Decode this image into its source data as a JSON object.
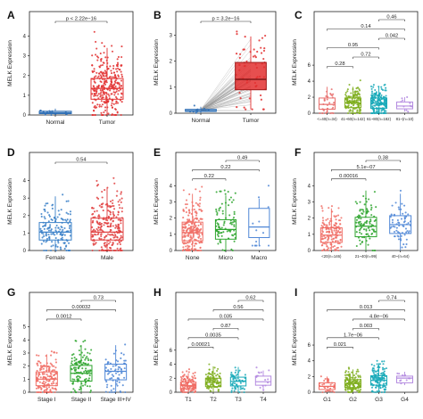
{
  "figure": {
    "panels": [
      {
        "letter": "A",
        "ylabel": "MELK Expression"
      },
      {
        "letter": "B",
        "ylabel": "MELK Expression"
      },
      {
        "letter": "C",
        "ylabel": "MELK Expression"
      },
      {
        "letter": "D",
        "ylabel": "MELK Expression"
      },
      {
        "letter": "E",
        "ylabel": "MELK Expression"
      },
      {
        "letter": "F",
        "ylabel": "MELK Expression"
      },
      {
        "letter": "G",
        "ylabel": "MELK Expression"
      },
      {
        "letter": "H",
        "ylabel": "MELK Expression"
      },
      {
        "letter": "I",
        "ylabel": "MELK Expression"
      }
    ]
  },
  "colors": {
    "normal": "#2f6fb5",
    "tumor": "#e23030",
    "c_g1": "#e8706e",
    "c_g2": "#7fae1f",
    "c_g3": "#17a9b8",
    "c_g4": "#b48be0",
    "d_female": "#3a80c8",
    "d_male": "#e04040",
    "three_1": "#f06e66",
    "three_2": "#2ea52e",
    "three_3": "#4e86d6",
    "four_1": "#f06e66",
    "four_2": "#7fae1f",
    "four_3": "#17a9b8",
    "four_4": "#b48be0"
  },
  "chart_data": [
    {
      "panel": "A",
      "type": "box",
      "ylabel": "MELK Expression",
      "ylim": [
        0,
        4.3
      ],
      "yticks": [
        0,
        1,
        2,
        3,
        4
      ],
      "categories": [
        "Normal",
        "Tumor"
      ],
      "boxes": [
        {
          "category": "Normal",
          "q1": 0.07,
          "median": 0.12,
          "q3": 0.19,
          "lower": 0.0,
          "upper": 0.32
        },
        {
          "category": "Tumor",
          "q1": 0.8,
          "median": 1.35,
          "q3": 1.85,
          "lower": 0.0,
          "upper": 3.4
        }
      ],
      "comparisons": [
        {
          "label": "p < 2.22e−16",
          "from": "Normal",
          "to": "Tumor"
        }
      ]
    },
    {
      "panel": "B",
      "type": "paired-box",
      "ylabel": "MELK Expression",
      "ylim": [
        0,
        3.2
      ],
      "yticks": [
        0,
        1,
        2,
        3
      ],
      "categories": [
        "Normal",
        "Tumor"
      ],
      "boxes": [
        {
          "category": "Normal",
          "q1": 0.07,
          "median": 0.1,
          "q3": 0.15,
          "lower": 0.01,
          "upper": 0.25
        },
        {
          "category": "Tumor",
          "q1": 0.9,
          "median": 1.3,
          "q3": 1.95,
          "lower": 0.15,
          "upper": 2.95
        }
      ],
      "comparisons": [
        {
          "label": "p = 3.2e−16",
          "from": "Normal",
          "to": "Tumor"
        }
      ]
    },
    {
      "panel": "C",
      "type": "box",
      "ylabel": "MELK Expression",
      "ylim": [
        0,
        6.6
      ],
      "yticks": [
        0,
        2,
        4,
        6
      ],
      "categories": [
        "<=40(n=34)",
        "41~60(n=142)",
        "61~80(n=182)",
        "81~(n=10)"
      ],
      "boxes": [
        {
          "category": "<=40(n=34)",
          "q1": 0.5,
          "median": 1.1,
          "q3": 1.9,
          "lower": 0.0,
          "upper": 3.3
        },
        {
          "category": "41~60(n=142)",
          "q1": 0.7,
          "median": 1.3,
          "q3": 1.9,
          "lower": 0.0,
          "upper": 3.3
        },
        {
          "category": "61~80(n=182)",
          "q1": 0.6,
          "median": 1.25,
          "q3": 1.9,
          "lower": 0.0,
          "upper": 3.3
        },
        {
          "category": "81~(n=10)",
          "q1": 0.55,
          "median": 0.9,
          "q3": 1.4,
          "lower": 0.2,
          "upper": 2.0
        }
      ],
      "comparisons": [
        {
          "label": "0.28",
          "from": "<=40(n=34)",
          "to": "41~60(n=142)"
        },
        {
          "label": "0.72",
          "from": "41~60(n=142)",
          "to": "61~80(n=182)"
        },
        {
          "label": "0.95",
          "from": "<=40(n=34)",
          "to": "61~80(n=182)"
        },
        {
          "label": "0.042",
          "from": "61~80(n=182)",
          "to": "81~(n=10)"
        },
        {
          "label": "0.14",
          "from": "<=40(n=34)",
          "to": "81~(n=10)"
        },
        {
          "label": "0.46",
          "from": "81~(n=10)",
          "to": "81~(n=10)"
        }
      ]
    },
    {
      "panel": "D",
      "type": "box",
      "ylabel": "MELK Expression",
      "ylim": [
        0,
        4.6
      ],
      "yticks": [
        0,
        1,
        2,
        3,
        4
      ],
      "categories": [
        "Female",
        "Male"
      ],
      "boxes": [
        {
          "category": "Female",
          "q1": 0.6,
          "median": 1.05,
          "q3": 1.6,
          "lower": 0.0,
          "upper": 3.1
        },
        {
          "category": "Male",
          "q1": 0.6,
          "median": 1.05,
          "q3": 1.85,
          "lower": 0.0,
          "upper": 3.6
        }
      ],
      "comparisons": [
        {
          "label": "0.54",
          "from": "Female",
          "to": "Male"
        }
      ]
    },
    {
      "panel": "E",
      "type": "box",
      "ylabel": "MELK Expression",
      "ylim": [
        0,
        4.6
      ],
      "yticks": [
        0,
        1,
        2,
        3,
        4
      ],
      "categories": [
        "None",
        "Micro",
        "Macro"
      ],
      "boxes": [
        {
          "category": "None",
          "q1": 0.6,
          "median": 1.1,
          "q3": 1.75,
          "lower": 0.0,
          "upper": 3.5
        },
        {
          "category": "Micro",
          "q1": 0.7,
          "median": 1.3,
          "q3": 1.9,
          "lower": 0.0,
          "upper": 3.4
        },
        {
          "category": "Macro",
          "q1": 0.8,
          "median": 1.45,
          "q3": 2.6,
          "lower": 0.3,
          "upper": 3.2
        }
      ],
      "comparisons": [
        {
          "label": "0.22",
          "from": "None",
          "to": "Micro"
        },
        {
          "label": "0.22",
          "from": "None",
          "to": "Macro"
        },
        {
          "label": "0.49",
          "from": "Micro",
          "to": "Macro"
        }
      ]
    },
    {
      "panel": "F",
      "type": "box",
      "ylabel": "MELK Expression",
      "ylim": [
        0,
        4.6
      ],
      "yticks": [
        0,
        1,
        2,
        3,
        4
      ],
      "categories": [
        "<20(n=146)",
        "21~40(n=99)",
        "40~(n=64)"
      ],
      "boxes": [
        {
          "category": "<20(n=146)",
          "q1": 0.5,
          "median": 0.95,
          "q3": 1.4,
          "lower": 0.0,
          "upper": 2.6
        },
        {
          "category": "21~40(n=99)",
          "q1": 0.85,
          "median": 1.5,
          "q3": 2.05,
          "lower": 0.0,
          "upper": 3.7
        },
        {
          "category": "40~(n=64)",
          "q1": 1.05,
          "median": 1.6,
          "q3": 2.15,
          "lower": 0.0,
          "upper": 3.5
        }
      ],
      "comparisons": [
        {
          "label": "0.00016",
          "from": "<20(n=146)",
          "to": "21~40(n=99)"
        },
        {
          "label": "5.1e−07",
          "from": "<20(n=146)",
          "to": "40~(n=64)"
        },
        {
          "label": "0.38",
          "from": "21~40(n=99)",
          "to": "40~(n=64)"
        }
      ]
    },
    {
      "panel": "G",
      "type": "box",
      "ylabel": "MELK Expression",
      "ylim": [
        0,
        5.8
      ],
      "yticks": [
        0,
        1,
        2,
        3,
        4,
        5
      ],
      "categories": [
        "Stage I",
        "Stage II",
        "Stage III+IV"
      ],
      "boxes": [
        {
          "category": "Stage I",
          "q1": 0.5,
          "median": 1.0,
          "q3": 1.55,
          "lower": 0.0,
          "upper": 2.9
        },
        {
          "category": "Stage II",
          "q1": 0.85,
          "median": 1.45,
          "q3": 2.05,
          "lower": 0.0,
          "upper": 3.6
        },
        {
          "category": "Stage III+IV",
          "q1": 0.95,
          "median": 1.6,
          "q3": 2.15,
          "lower": 0.0,
          "upper": 3.6
        }
      ],
      "comparisons": [
        {
          "label": "0.0012",
          "from": "Stage I",
          "to": "Stage II"
        },
        {
          "label": "0.00032",
          "from": "Stage I",
          "to": "Stage III+IV"
        },
        {
          "label": "0.73",
          "from": "Stage II",
          "to": "Stage III+IV"
        }
      ]
    },
    {
      "panel": "H",
      "type": "box",
      "ylabel": "MELK Expression",
      "ylim": [
        0,
        7.4
      ],
      "yticks": [
        0,
        2,
        4,
        6
      ],
      "categories": [
        "T1",
        "T2",
        "T3",
        "T4"
      ],
      "boxes": [
        {
          "category": "T1",
          "q1": 0.5,
          "median": 0.95,
          "q3": 1.45,
          "lower": 0.0,
          "upper": 2.7
        },
        {
          "category": "T2",
          "q1": 0.8,
          "median": 1.4,
          "q3": 2.0,
          "lower": 0.0,
          "upper": 3.7
        },
        {
          "category": "T3",
          "q1": 0.9,
          "median": 1.55,
          "q3": 2.15,
          "lower": 0.0,
          "upper": 3.6
        },
        {
          "category": "T4",
          "q1": 1.0,
          "median": 1.5,
          "q3": 2.3,
          "lower": 0.3,
          "upper": 3.1
        }
      ],
      "comparisons": [
        {
          "label": "0.00021",
          "from": "T1",
          "to": "T2"
        },
        {
          "label": "0.0035",
          "from": "T1",
          "to": "T3"
        },
        {
          "label": "0.87",
          "from": "T2",
          "to": "T3"
        },
        {
          "label": "0.035",
          "from": "T1",
          "to": "T4"
        },
        {
          "label": "0.56",
          "from": "T2",
          "to": "T4"
        },
        {
          "label": "0.62",
          "from": "T3",
          "to": "T4"
        }
      ]
    },
    {
      "panel": "I",
      "type": "box",
      "ylabel": "MELK Expression",
      "ylim": [
        0,
        6.6
      ],
      "yticks": [
        0,
        2,
        4,
        6
      ],
      "categories": [
        "G1",
        "G2",
        "G3",
        "G4"
      ],
      "boxes": [
        {
          "category": "G1",
          "q1": 0.35,
          "median": 0.75,
          "q3": 1.2,
          "lower": 0.0,
          "upper": 2.0
        },
        {
          "category": "G2",
          "q1": 0.6,
          "median": 1.1,
          "q3": 1.6,
          "lower": 0.0,
          "upper": 2.9
        },
        {
          "category": "G3",
          "q1": 0.9,
          "median": 1.5,
          "q3": 2.1,
          "lower": 0.0,
          "upper": 3.7
        },
        {
          "category": "G4",
          "q1": 1.2,
          "median": 1.8,
          "q3": 2.05,
          "lower": 0.9,
          "upper": 2.6
        }
      ],
      "comparisons": [
        {
          "label": "0.021",
          "from": "G1",
          "to": "G2"
        },
        {
          "label": "1.7e−06",
          "from": "G1",
          "to": "G3"
        },
        {
          "label": "0.003",
          "from": "G2",
          "to": "G3"
        },
        {
          "label": "4.8e−06",
          "from": "G2",
          "to": "G4"
        },
        {
          "label": "0.013",
          "from": "G1",
          "to": "G4"
        },
        {
          "label": "0.74",
          "from": "G3",
          "to": "G4"
        }
      ]
    }
  ]
}
